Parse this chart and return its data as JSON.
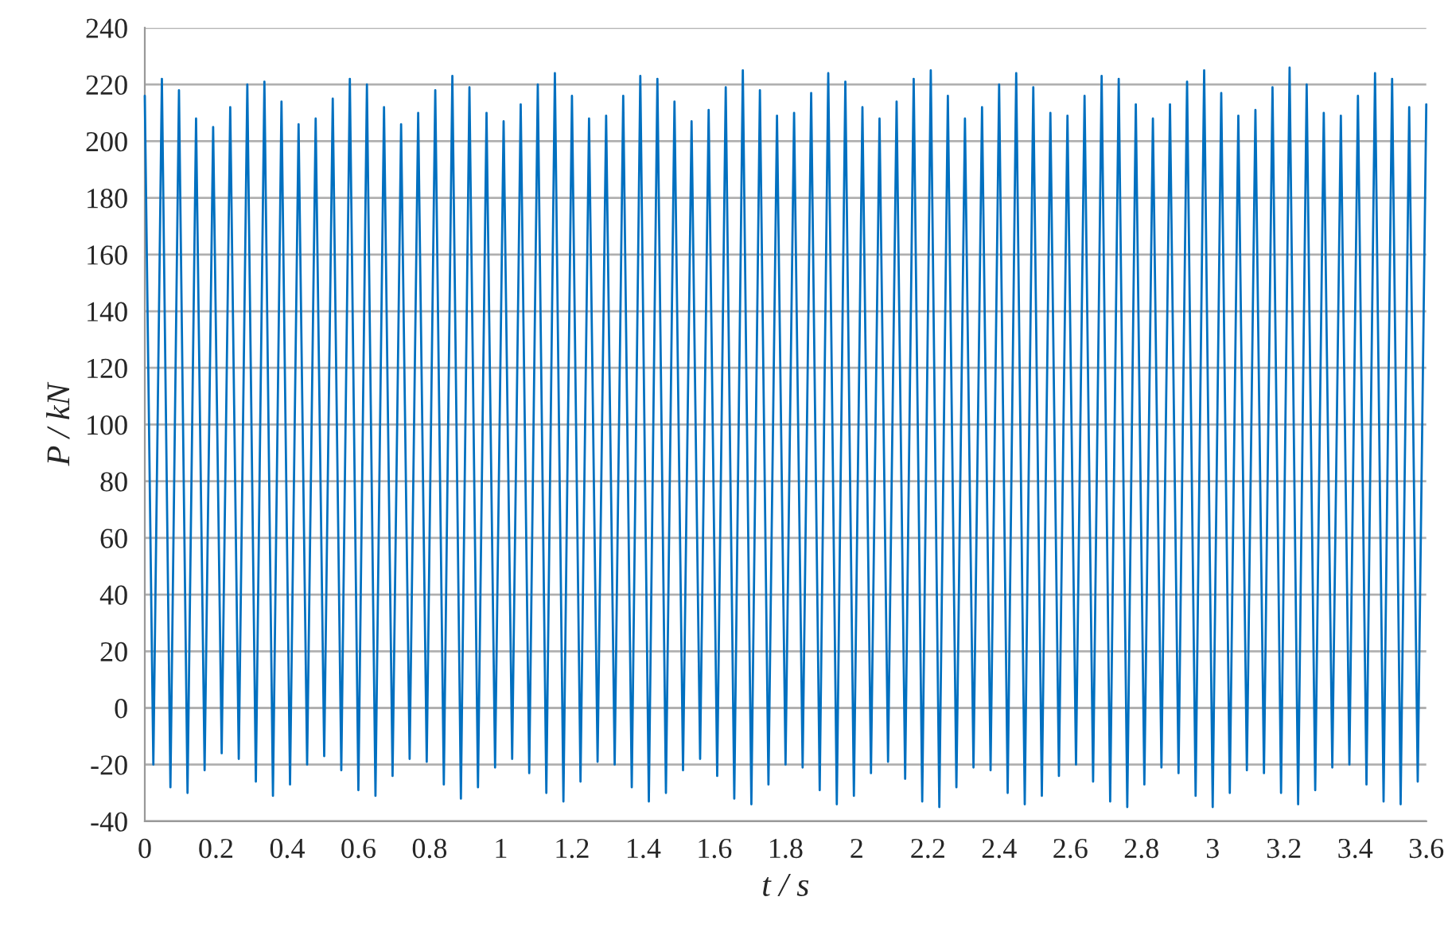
{
  "chart_data": {
    "type": "line",
    "xlabel": "t / s",
    "ylabel": "P / kN",
    "x": [
      0,
      0.024,
      0.048,
      0.072,
      0.096,
      0.12,
      0.144,
      0.168,
      0.192,
      0.216,
      0.24,
      0.264,
      0.288,
      0.312,
      0.336,
      0.36,
      0.384,
      0.408,
      0.432,
      0.456,
      0.48,
      0.504,
      0.528,
      0.552,
      0.576,
      0.6,
      0.624,
      0.648,
      0.672,
      0.696,
      0.72,
      0.744,
      0.768,
      0.792,
      0.816,
      0.84,
      0.864,
      0.888,
      0.912,
      0.936,
      0.96,
      0.984,
      1.008,
      1.032,
      1.056,
      1.08,
      1.104,
      1.128,
      1.152,
      1.176,
      1.2,
      1.224,
      1.248,
      1.272,
      1.296,
      1.32,
      1.344,
      1.368,
      1.392,
      1.416,
      1.44,
      1.464,
      1.488,
      1.512,
      1.536,
      1.56,
      1.584,
      1.608,
      1.632,
      1.656,
      1.68,
      1.704,
      1.728,
      1.752,
      1.776,
      1.8,
      1.824,
      1.848,
      1.872,
      1.896,
      1.92,
      1.944,
      1.968,
      1.992,
      2.016,
      2.04,
      2.064,
      2.088,
      2.112,
      2.136,
      2.16,
      2.184,
      2.208,
      2.232,
      2.256,
      2.28,
      2.304,
      2.328,
      2.352,
      2.376,
      2.4,
      2.424,
      2.448,
      2.472,
      2.496,
      2.52,
      2.544,
      2.568,
      2.592,
      2.616,
      2.64,
      2.664,
      2.688,
      2.712,
      2.736,
      2.76,
      2.784,
      2.808,
      2.832,
      2.856,
      2.88,
      2.904,
      2.928,
      2.952,
      2.976,
      3,
      3.024,
      3.048,
      3.072,
      3.096,
      3.12,
      3.144,
      3.168,
      3.192,
      3.216,
      3.24,
      3.264,
      3.288,
      3.312,
      3.336,
      3.36,
      3.384,
      3.408,
      3.432,
      3.456,
      3.48,
      3.504,
      3.528,
      3.552,
      3.576,
      3.6
    ],
    "series": [
      {
        "color": "#0070c0",
        "values": [
          216,
          -20,
          222,
          -28,
          218,
          -30,
          208,
          -22,
          205,
          -16,
          212,
          -18,
          220,
          -26,
          221,
          -31,
          214,
          -27,
          206,
          -20,
          208,
          -17,
          215,
          -22,
          222,
          -29,
          220,
          -31,
          212,
          -24,
          206,
          -18,
          210,
          -19,
          218,
          -27,
          223,
          -32,
          219,
          -28,
          210,
          -21,
          207,
          -18,
          213,
          -23,
          220,
          -30,
          224,
          -33,
          216,
          -26,
          208,
          -19,
          209,
          -20,
          216,
          -28,
          223,
          -33,
          222,
          -30,
          214,
          -22,
          207,
          -18,
          211,
          -24,
          219,
          -32,
          225,
          -34,
          218,
          -27,
          209,
          -20,
          210,
          -21,
          217,
          -29,
          224,
          -34,
          221,
          -31,
          212,
          -23,
          208,
          -19,
          214,
          -25,
          222,
          -33,
          225,
          -35,
          216,
          -28,
          208,
          -21,
          212,
          -22,
          220,
          -30,
          224,
          -34,
          219,
          -31,
          210,
          -24,
          209,
          -20,
          216,
          -26,
          223,
          -33,
          222,
          -35,
          213,
          -27,
          208,
          -21,
          213,
          -23,
          221,
          -31,
          225,
          -35,
          217,
          -30,
          209,
          -22,
          211,
          -23,
          219,
          -30,
          226,
          -34,
          220,
          -29,
          210,
          -21,
          209,
          -20,
          216,
          -27,
          224,
          -33,
          222,
          -34,
          212,
          -26,
          213
        ]
      }
    ],
    "xlim": [
      0,
      3.6
    ],
    "xticks": [
      0,
      0.2,
      0.4,
      0.6,
      0.8,
      1,
      1.2,
      1.4,
      1.6,
      1.8,
      2,
      2.2,
      2.4,
      2.6,
      2.8,
      3,
      3.2,
      3.4,
      3.6
    ],
    "ylim": [
      -40,
      240
    ],
    "yticks": [
      -40,
      -20,
      0,
      20,
      40,
      60,
      80,
      100,
      120,
      140,
      160,
      180,
      200,
      220,
      240
    ],
    "grid": "y",
    "marker": "none",
    "line_style": "solid",
    "legend": false
  }
}
